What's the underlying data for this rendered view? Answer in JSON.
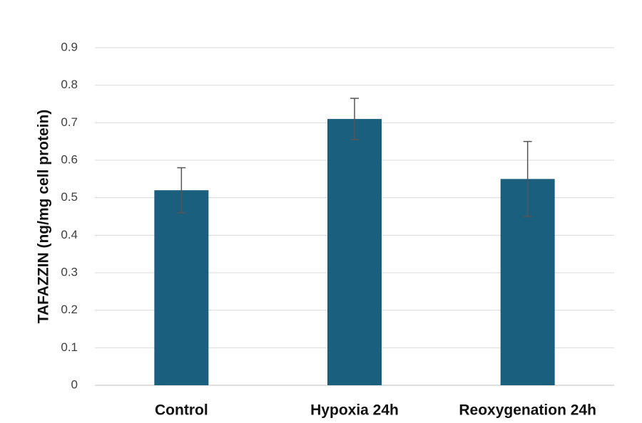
{
  "chart_data": {
    "type": "bar",
    "title": "",
    "xlabel": "",
    "ylabel": "TAFAZZIN (ng/mg cell protein)",
    "categories": [
      "Control",
      "Hypoxia 24h",
      "Reoxygenation 24h"
    ],
    "values": [
      0.52,
      0.71,
      0.55
    ],
    "error": [
      0.06,
      0.055,
      0.1
    ],
    "ylim": [
      0,
      0.9
    ],
    "yticks": [
      "0",
      "0.1",
      "0.2",
      "0.3",
      "0.4",
      "0.5",
      "0.6",
      "0.7",
      "0.8",
      "0.9"
    ],
    "grid": true,
    "legend": "none",
    "colors": {
      "bar": "#1b5f7e",
      "error_bar": "#555555",
      "grid": "#d9d9d9"
    }
  }
}
